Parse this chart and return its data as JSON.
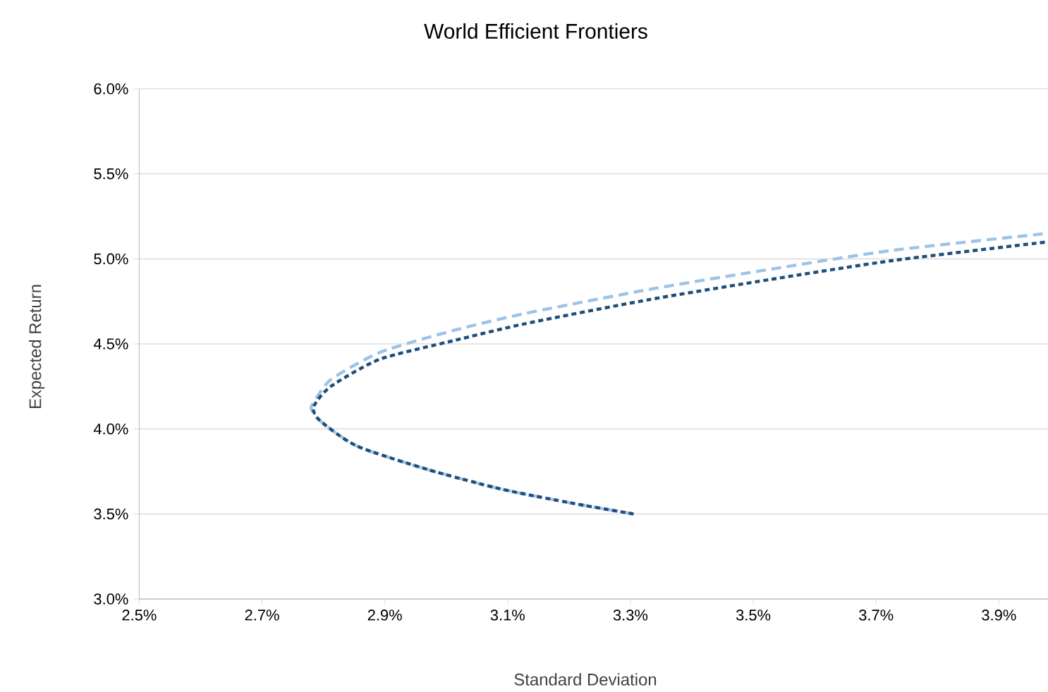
{
  "chart_data": {
    "type": "line",
    "title": "World Efficient Frontiers",
    "xlabel": "Standard Deviation",
    "ylabel": "Expected Return",
    "xlim": [
      2.5,
      3.98
    ],
    "ylim": [
      3.0,
      6.0
    ],
    "xticks": [
      {
        "value": 2.5,
        "label": "2.5%"
      },
      {
        "value": 2.7,
        "label": "2.7%"
      },
      {
        "value": 2.9,
        "label": "2.9%"
      },
      {
        "value": 3.1,
        "label": "3.1%"
      },
      {
        "value": 3.3,
        "label": "3.3%"
      },
      {
        "value": 3.5,
        "label": "3.5%"
      },
      {
        "value": 3.7,
        "label": "3.7%"
      },
      {
        "value": 3.9,
        "label": "3.9%"
      }
    ],
    "yticks": [
      {
        "value": 3.0,
        "label": "3.0%"
      },
      {
        "value": 3.5,
        "label": "3.5%"
      },
      {
        "value": 4.0,
        "label": "4.0%"
      },
      {
        "value": 4.5,
        "label": "4.5%"
      },
      {
        "value": 5.0,
        "label": "5.0%"
      },
      {
        "value": 5.5,
        "label": "5.5%"
      },
      {
        "value": 6.0,
        "label": "6.0%"
      }
    ],
    "grid": "y",
    "marker": "none",
    "series": [
      {
        "color": "#9dc3e6",
        "line_style": "dashed",
        "x": [
          3.305,
          3.21,
          3.091,
          2.971,
          2.854,
          2.794,
          2.78,
          2.785,
          2.812,
          2.892,
          3.013,
          3.13,
          3.33,
          3.53,
          3.727,
          3.98
        ],
        "values": [
          3.5,
          3.56,
          3.645,
          3.76,
          3.9,
          4.05,
          4.12,
          4.16,
          4.29,
          4.45,
          4.58,
          4.68,
          4.82,
          4.94,
          5.05,
          5.15
        ]
      },
      {
        "color": "#1f4e79",
        "line_style": "dashed",
        "x": [
          3.305,
          3.21,
          3.091,
          2.971,
          2.854,
          2.794,
          2.784,
          2.812,
          2.892,
          3.013,
          3.13,
          3.33,
          3.53,
          3.727,
          3.98
        ],
        "values": [
          3.5,
          3.56,
          3.645,
          3.76,
          3.9,
          4.05,
          4.13,
          4.25,
          4.41,
          4.52,
          4.62,
          4.76,
          4.88,
          4.99,
          5.1
        ]
      }
    ]
  }
}
